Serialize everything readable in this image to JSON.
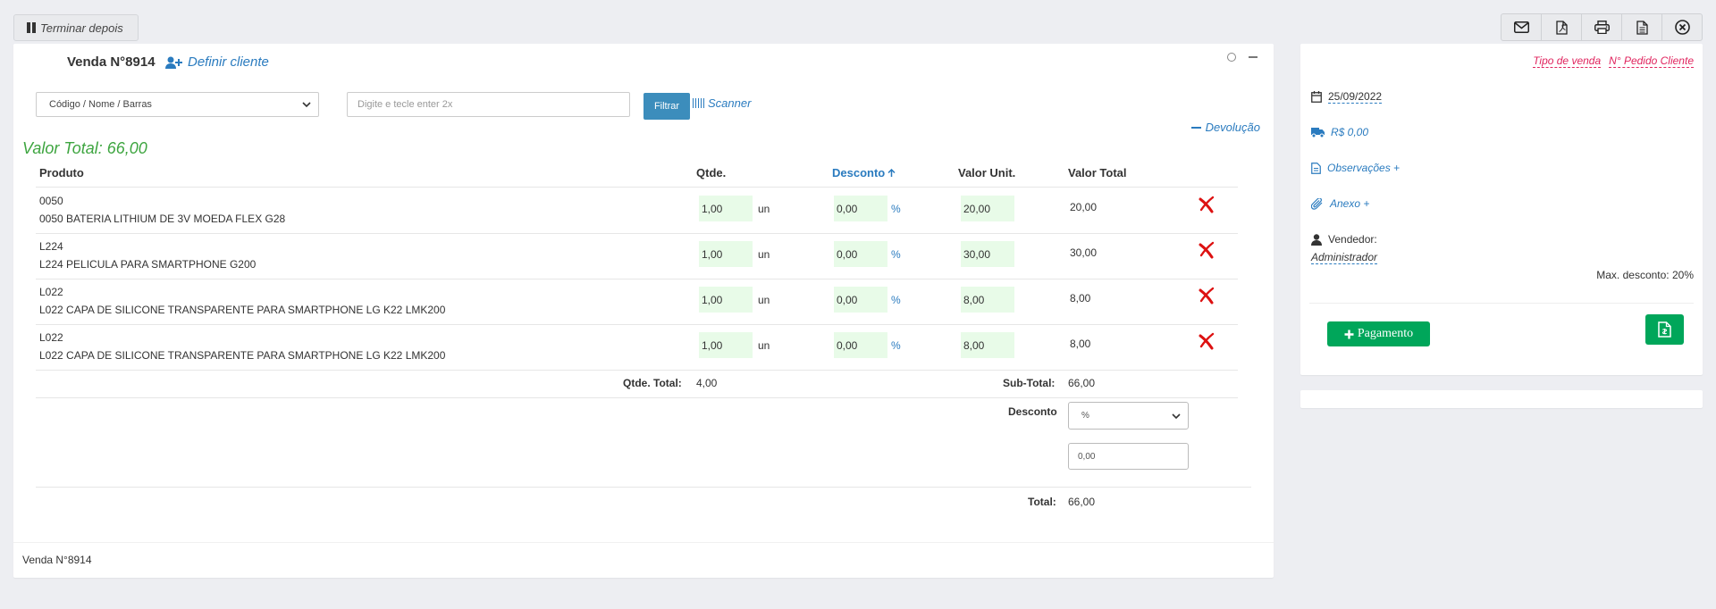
{
  "topbar": {
    "finish_later": "Terminar depois",
    "toolbar_icons": [
      "envelope-icon",
      "pdf-icon",
      "print-icon",
      "document-icon",
      "close-circle-icon"
    ]
  },
  "sale": {
    "title": "Venda N°8914",
    "define_client": "Definir cliente",
    "search_select": "Código / Nome / Barras",
    "search_placeholder": "Digite e tecle enter 2x",
    "filter_label": "Filtrar",
    "scanner_label": "Scanner",
    "return_label": "Devolução",
    "total_value": "Valor Total: 66,00",
    "footer": "Venda N°8914"
  },
  "table": {
    "headers": {
      "product": "Produto",
      "qty": "Qtde.",
      "discount": "Desconto",
      "unit_value": "Valor Unit.",
      "total_value": "Valor Total"
    },
    "rows": [
      {
        "code": "0050",
        "name": "0050 BATERIA LITHIUM DE 3V MOEDA FLEX G28",
        "qty": "1,00",
        "unit": "un",
        "discount": "0,00",
        "pct": "%",
        "unit_price": "20,00",
        "total": "20,00"
      },
      {
        "code": "L224",
        "name": "L224 PELICULA PARA SMARTPHONE G200",
        "qty": "1,00",
        "unit": "un",
        "discount": "0,00",
        "pct": "%",
        "unit_price": "30,00",
        "total": "30,00"
      },
      {
        "code": "L022",
        "name": "L022 CAPA DE SILICONE TRANSPARENTE PARA SMARTPHONE LG K22 LMK200",
        "qty": "1,00",
        "unit": "un",
        "discount": "0,00",
        "pct": "%",
        "unit_price": "8,00",
        "total": "8,00"
      },
      {
        "code": "L022",
        "name": "L022 CAPA DE SILICONE TRANSPARENTE PARA SMARTPHONE LG K22 LMK200",
        "qty": "1,00",
        "unit": "un",
        "discount": "0,00",
        "pct": "%",
        "unit_price": "8,00",
        "total": "8,00"
      }
    ]
  },
  "totals": {
    "qty_label": "Qtde. Total:",
    "qty_value": "4,00",
    "subtotal_label": "Sub-Total:",
    "subtotal_value": "66,00",
    "discount_label": "Desconto",
    "discount_type": "%",
    "discount_value": "0,00",
    "total_label": "Total:",
    "total_value": "66,00"
  },
  "side": {
    "sale_type": "Tipo de venda",
    "client_order": "N° Pedido Cliente",
    "date": "25/09/2022",
    "freight": "R$ 0,00",
    "notes": "Observações +",
    "attachment": "Anexo +",
    "seller_label": "Vendedor:",
    "seller_name": "Administrador",
    "max_discount": "Max. desconto: 20%",
    "payment_button": "Pagamento"
  },
  "colors": {
    "accent_blue": "#2a7bbf",
    "success_green": "#00a65a",
    "total_green": "#3ea540",
    "link_pink": "#e0245e",
    "input_green_bg": "#e8fbe8"
  }
}
